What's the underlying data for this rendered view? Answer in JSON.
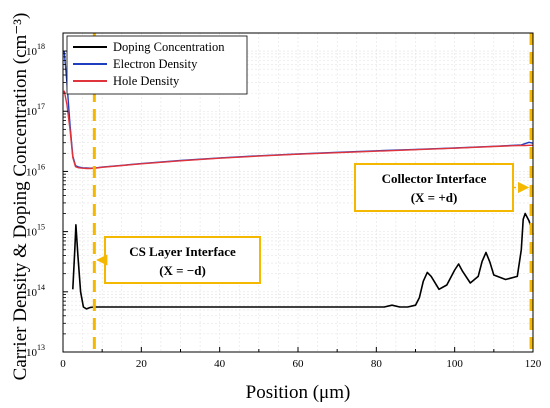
{
  "chart_data": {
    "type": "line",
    "xlabel": "Position (μm)",
    "ylabel": "Carrier Density & Doping Concentration (cm⁻³)",
    "xlim": [
      0,
      120
    ],
    "ylim_log10": [
      13,
      18.3
    ],
    "y_scale": "log",
    "grid": true,
    "legend_position": "top-left",
    "x_ticks": [
      0,
      20,
      40,
      60,
      80,
      100,
      120
    ],
    "x_tick_labels": [
      "0",
      "20",
      "40",
      "60",
      "80",
      "100",
      "120"
    ],
    "y_ticks_log10": [
      13,
      14,
      15,
      16,
      17,
      18
    ],
    "y_tick_labels": [
      {
        "base": "10",
        "exp": "13"
      },
      {
        "base": "10",
        "exp": "14"
      },
      {
        "base": "10",
        "exp": "15"
      },
      {
        "base": "10",
        "exp": "16"
      },
      {
        "base": "10",
        "exp": "17"
      },
      {
        "base": "10",
        "exp": "18"
      }
    ],
    "series": [
      {
        "name": "Doping Concentration",
        "color": "#000000",
        "x": [
          2.5,
          3.0,
          3.3,
          3.8,
          4.5,
          5.2,
          6.0,
          7.0,
          8.0,
          10,
          30,
          50,
          70,
          82,
          84,
          86,
          88,
          90,
          91,
          92,
          93,
          94,
          96,
          98,
          100,
          101,
          102,
          104,
          106,
          107,
          108,
          109,
          110,
          113,
          116,
          117,
          117.5,
          118,
          119,
          120
        ],
        "y": [
          110000000000000.0,
          500000000000000.0,
          1300000000000000.0,
          400000000000000.0,
          100000000000000.0,
          56000000000000.0,
          52000000000000.0,
          55000000000000.0,
          56000000000000.0,
          56000000000000.0,
          56000000000000.0,
          56000000000000.0,
          56000000000000.0,
          56000000000000.0,
          60000000000000.0,
          56000000000000.0,
          56000000000000.0,
          60000000000000.0,
          80000000000000.0,
          150000000000000.0,
          210000000000000.0,
          180000000000000.0,
          110000000000000.0,
          130000000000000.0,
          230000000000000.0,
          290000000000000.0,
          220000000000000.0,
          140000000000000.0,
          180000000000000.0,
          320000000000000.0,
          450000000000000.0,
          310000000000000.0,
          190000000000000.0,
          160000000000000.0,
          180000000000000.0,
          500000000000000.0,
          1600000000000000.0,
          2000000000000000.0,
          1500000000000000.0,
          900000000000000.0
        ]
      },
      {
        "name": "Electron Density",
        "color": "#1f3fbf",
        "x": [
          0.3,
          1.0,
          1.8,
          2.5,
          3.2,
          4.0,
          5.0,
          6.0,
          7.0,
          8.5,
          10,
          20,
          30,
          40,
          50,
          60,
          70,
          80,
          90,
          100,
          110,
          115,
          117,
          118,
          119,
          120
        ],
        "y": [
          1e+18,
          3e+17,
          6e+16,
          1.8e+16,
          1.25e+16,
          1.18e+16,
          1.15e+16,
          1.14e+16,
          1.13e+16,
          1.15e+16,
          1.18e+16,
          1.35e+16,
          1.52e+16,
          1.68e+16,
          1.82e+16,
          1.95e+16,
          2.08e+16,
          2.2e+16,
          2.32e+16,
          2.45e+16,
          2.62e+16,
          2.72e+16,
          2.76e+16,
          2.9e+16,
          3.05e+16,
          2.95e+16
        ]
      },
      {
        "name": "Hole Density",
        "color": "#e0343c",
        "x": [
          0.3,
          1.0,
          1.8,
          2.5,
          3.2,
          4.0,
          5.0,
          6.0,
          7.0,
          8.5,
          10,
          20,
          30,
          40,
          50,
          60,
          70,
          80,
          90,
          100,
          110,
          115,
          117,
          118,
          119,
          120
        ],
        "y": [
          2.2e+17,
          1.3e+17,
          5e+16,
          1.7e+16,
          1.2e+16,
          1.15e+16,
          1.13e+16,
          1.12e+16,
          1.12e+16,
          1.14e+16,
          1.17e+16,
          1.34e+16,
          1.5e+16,
          1.66e+16,
          1.8e+16,
          1.93e+16,
          2.05e+16,
          2.17e+16,
          2.3e+16,
          2.43e+16,
          2.6e+16,
          2.68e+16,
          2.7e+16,
          2.7e+16,
          2.72e+16,
          2.72e+16
        ]
      }
    ],
    "vertical_lines": [
      {
        "x": 8,
        "color": "#f5b800",
        "style": "dashed"
      },
      {
        "x": 119.5,
        "color": "#f5b800",
        "style": "dashed"
      }
    ],
    "annotations": [
      {
        "line1": "CS Layer Interface",
        "line2": "(X = −d)",
        "arrow_to": "x=8",
        "box_color": "#f5b800"
      },
      {
        "line1": "Collector Interface",
        "line2": "(X = +d)",
        "arrow_to": "x=119.5",
        "box_color": "#f5b800"
      }
    ]
  }
}
